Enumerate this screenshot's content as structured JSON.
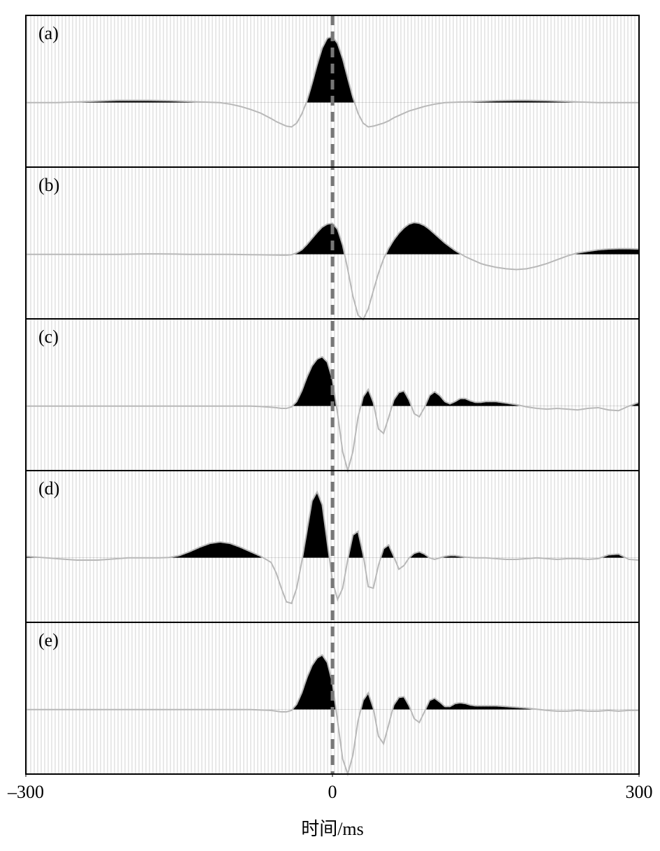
{
  "chart_data": {
    "type": "wiggle",
    "xlabel": "时间/ms",
    "xlim": [
      -300,
      300
    ],
    "xticks": [
      {
        "value": -300,
        "label": "–300"
      },
      0,
      300
    ],
    "ylim": [
      -0.85,
      1.15
    ],
    "vline": 0,
    "line_color": "#b8b8b8",
    "fill_color": "#000000",
    "x": [
      -300,
      -290,
      -280,
      -270,
      -260,
      -250,
      -240,
      -230,
      -220,
      -210,
      -200,
      -190,
      -180,
      -170,
      -160,
      -150,
      -140,
      -130,
      -120,
      -110,
      -100,
      -90,
      -80,
      -70,
      -60,
      -55,
      -50,
      -45,
      -40,
      -35,
      -30,
      -25,
      -20,
      -15,
      -10,
      -5,
      0,
      5,
      10,
      15,
      20,
      25,
      30,
      35,
      40,
      45,
      50,
      55,
      60,
      65,
      70,
      75,
      80,
      85,
      90,
      95,
      100,
      105,
      110,
      115,
      120,
      125,
      130,
      135,
      140,
      145,
      150,
      160,
      170,
      180,
      190,
      200,
      210,
      220,
      230,
      240,
      250,
      260,
      270,
      280,
      290,
      300
    ],
    "series": [
      {
        "name": "(a)",
        "values": [
          0,
          0,
          0,
          0,
          0.005,
          0.01,
          0.015,
          0.02,
          0.025,
          0.03,
          0.03,
          0.03,
          0.03,
          0.028,
          0.025,
          0.02,
          0.015,
          0.01,
          0.005,
          0,
          -0.02,
          -0.05,
          -0.09,
          -0.14,
          -0.21,
          -0.25,
          -0.28,
          -0.31,
          -0.32,
          -0.27,
          -0.15,
          0.02,
          0.25,
          0.5,
          0.72,
          0.85,
          0.87,
          0.78,
          0.58,
          0.32,
          0.07,
          -0.14,
          -0.27,
          -0.32,
          -0.31,
          -0.29,
          -0.27,
          -0.24,
          -0.2,
          -0.17,
          -0.14,
          -0.11,
          -0.09,
          -0.07,
          -0.05,
          -0.035,
          -0.02,
          -0.01,
          0,
          0.003,
          0.005,
          0.008,
          0.01,
          0.012,
          0.015,
          0.018,
          0.02,
          0.025,
          0.028,
          0.03,
          0.03,
          0.028,
          0.025,
          0.02,
          0.015,
          0.01,
          0.005,
          0,
          0,
          0,
          0,
          0
        ]
      },
      {
        "name": "(b)",
        "values": [
          0,
          0,
          0,
          0,
          0,
          0,
          0,
          0,
          0,
          0,
          0.003,
          0.005,
          0.006,
          0.006,
          0.005,
          0.003,
          0,
          0,
          0,
          0,
          0,
          -0.002,
          -0.004,
          -0.006,
          -0.008,
          -0.009,
          -0.01,
          -0.01,
          -0.005,
          0.02,
          0.06,
          0.13,
          0.21,
          0.29,
          0.36,
          0.4,
          0.41,
          0.33,
          0.12,
          -0.2,
          -0.55,
          -0.8,
          -0.86,
          -0.72,
          -0.48,
          -0.25,
          -0.06,
          0.08,
          0.19,
          0.28,
          0.35,
          0.4,
          0.42,
          0.41,
          0.38,
          0.33,
          0.27,
          0.21,
          0.15,
          0.1,
          0.05,
          0.01,
          -0.03,
          -0.06,
          -0.09,
          -0.12,
          -0.14,
          -0.17,
          -0.19,
          -0.2,
          -0.19,
          -0.16,
          -0.12,
          -0.07,
          -0.02,
          0.02,
          0.04,
          0.06,
          0.07,
          0.075,
          0.075,
          0.07
        ]
      },
      {
        "name": "(c)",
        "values": [
          0,
          0,
          0,
          0,
          0,
          0,
          0,
          0,
          0,
          0,
          0,
          0,
          0,
          0,
          0,
          0,
          0,
          0,
          0,
          0,
          0,
          0,
          0,
          -0.005,
          -0.015,
          -0.02,
          -0.03,
          -0.03,
          -0.01,
          0.06,
          0.2,
          0.38,
          0.53,
          0.62,
          0.65,
          0.58,
          0.35,
          -0.1,
          -0.6,
          -0.85,
          -0.6,
          -0.15,
          0.12,
          0.22,
          0.05,
          -0.3,
          -0.36,
          -0.15,
          0.08,
          0.18,
          0.2,
          0.08,
          -0.1,
          -0.14,
          -0.02,
          0.14,
          0.19,
          0.14,
          0.06,
          0.03,
          0.06,
          0.1,
          0.1,
          0.07,
          0.05,
          0.05,
          0.06,
          0.06,
          0.04,
          0.02,
          -0.01,
          -0.03,
          -0.04,
          -0.03,
          -0.04,
          -0.05,
          -0.03,
          -0.02,
          -0.05,
          -0.06,
          0,
          0.05
        ]
      },
      {
        "name": "(d)",
        "values": [
          0.02,
          0.01,
          0,
          -0.01,
          -0.02,
          -0.03,
          -0.03,
          -0.03,
          -0.02,
          -0.01,
          0,
          0,
          0,
          0,
          0.005,
          0.03,
          0.08,
          0.14,
          0.19,
          0.21,
          0.19,
          0.14,
          0.08,
          0.02,
          -0.06,
          -0.2,
          -0.4,
          -0.58,
          -0.6,
          -0.4,
          -0.05,
          0.35,
          0.75,
          0.87,
          0.7,
          0.2,
          -0.3,
          -0.55,
          -0.4,
          -0.02,
          0.3,
          0.35,
          0.05,
          -0.38,
          -0.4,
          -0.1,
          0.12,
          0.17,
          0.02,
          -0.15,
          -0.1,
          0,
          0.06,
          0.08,
          0.05,
          0,
          -0.02,
          0,
          0.02,
          0.03,
          0.03,
          0.02,
          0.01,
          0.005,
          0,
          0,
          0,
          -0.01,
          -0.02,
          -0.02,
          -0.01,
          0,
          -0.01,
          -0.02,
          -0.01,
          -0.01,
          -0.02,
          -0.01,
          0.04,
          0.05,
          -0.02,
          -0.03
        ]
      },
      {
        "name": "(e)",
        "values": [
          0,
          0,
          0,
          0,
          0,
          0,
          0,
          0,
          0,
          0,
          0,
          0,
          0,
          0,
          0,
          0,
          0,
          0,
          0,
          0,
          0,
          0,
          0,
          -0.005,
          -0.01,
          -0.02,
          -0.03,
          -0.03,
          -0.01,
          0.07,
          0.22,
          0.42,
          0.58,
          0.68,
          0.72,
          0.62,
          0.35,
          -0.15,
          -0.65,
          -0.85,
          -0.6,
          -0.15,
          0.12,
          0.22,
          0.02,
          -0.35,
          -0.45,
          -0.2,
          0.06,
          0.16,
          0.17,
          0.05,
          -0.12,
          -0.17,
          -0.03,
          0.12,
          0.15,
          0.1,
          0.04,
          0.04,
          0.08,
          0.09,
          0.08,
          0.06,
          0.05,
          0.05,
          0.05,
          0.05,
          0.04,
          0.03,
          0.02,
          0.005,
          -0.01,
          -0.02,
          -0.02,
          -0.01,
          -0.02,
          -0.02,
          -0.01,
          -0.02,
          -0.01,
          -0.01
        ]
      }
    ]
  }
}
